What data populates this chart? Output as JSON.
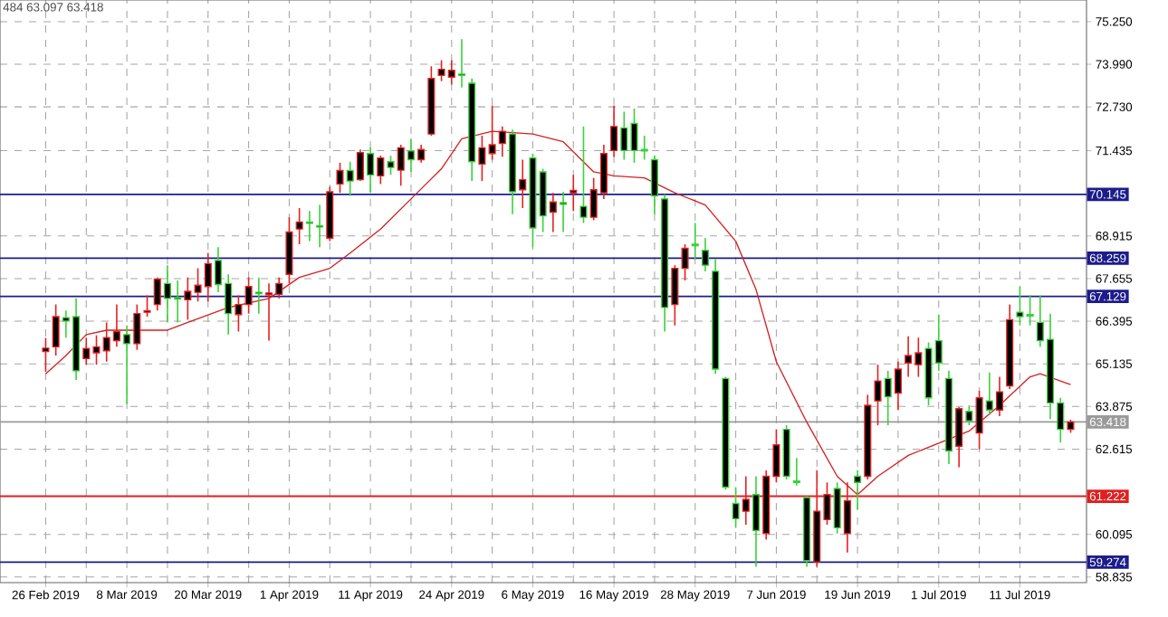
{
  "chart_data": {
    "type": "candlestick",
    "categories": [
      "26 Feb 2019",
      null,
      null,
      null,
      null,
      null,
      null,
      null,
      "8 Mar 2019",
      null,
      null,
      null,
      null,
      null,
      null,
      null,
      "20 Mar 2019",
      null,
      null,
      null,
      null,
      null,
      null,
      null,
      "1 Apr 2019",
      null,
      null,
      null,
      null,
      null,
      null,
      null,
      "11 Apr 2019",
      null,
      null,
      null,
      null,
      null,
      null,
      null,
      "24 Apr 2019",
      null,
      null,
      null,
      null,
      null,
      null,
      null,
      "6 May 2019",
      null,
      null,
      null,
      null,
      null,
      null,
      null,
      "16 May 2019",
      null,
      null,
      null,
      null,
      null,
      null,
      null,
      "28 May 2019",
      null,
      null,
      null,
      null,
      null,
      null,
      null,
      "7 Jun 2019",
      null,
      null,
      null,
      null,
      null,
      null,
      null,
      "19 Jun 2019",
      null,
      null,
      null,
      null,
      null,
      null,
      null,
      "1 Jul 2019",
      null,
      null,
      null,
      null,
      null,
      null,
      null,
      "11 Jul 2019",
      null,
      null,
      null,
      null,
      null
    ],
    "ohlc": [
      [
        65.5,
        65.9,
        64.9,
        65.6
      ],
      [
        65.64,
        66.89,
        65.38,
        66.53
      ],
      [
        66.5,
        66.71,
        65.91,
        66.4
      ],
      [
        66.53,
        67.07,
        64.66,
        64.93
      ],
      [
        65.29,
        65.91,
        65.11,
        65.59
      ],
      [
        65.46,
        65.98,
        65.11,
        65.64
      ],
      [
        65.52,
        66.36,
        65.2,
        65.91
      ],
      [
        65.82,
        66.89,
        65.64,
        66.09
      ],
      [
        66.0,
        66.27,
        63.95,
        65.73
      ],
      [
        65.73,
        66.89,
        65.55,
        66.62
      ],
      [
        66.66,
        67.16,
        66.53,
        66.71
      ],
      [
        66.89,
        67.69,
        66.71,
        67.64
      ],
      [
        67.51,
        68.05,
        66.36,
        67.07
      ],
      [
        67.09,
        67.6,
        66.36,
        67.05
      ],
      [
        67.03,
        67.69,
        66.44,
        67.28
      ],
      [
        67.25,
        67.96,
        66.98,
        67.46
      ],
      [
        67.42,
        68.41,
        66.98,
        68.1
      ],
      [
        68.19,
        68.58,
        67.25,
        67.48
      ],
      [
        67.51,
        67.78,
        66.0,
        66.62
      ],
      [
        66.59,
        67.16,
        66.09,
        66.89
      ],
      [
        66.89,
        67.69,
        66.62,
        67.42
      ],
      [
        67.25,
        67.69,
        66.62,
        67.21
      ],
      [
        67.18,
        67.51,
        65.82,
        67.23
      ],
      [
        67.19,
        67.69,
        67.07,
        67.51
      ],
      [
        67.78,
        69.47,
        67.51,
        69.03
      ],
      [
        69.12,
        69.74,
        68.67,
        69.33
      ],
      [
        69.33,
        69.65,
        68.76,
        69.29
      ],
      [
        69.22,
        69.83,
        68.58,
        69.18
      ],
      [
        68.85,
        70.37,
        68.76,
        70.22
      ],
      [
        70.45,
        71.08,
        70.19,
        70.85
      ],
      [
        70.85,
        71.11,
        70.1,
        70.54
      ],
      [
        70.58,
        71.47,
        70.54,
        71.38
      ],
      [
        71.35,
        71.53,
        70.19,
        70.72
      ],
      [
        70.69,
        71.29,
        70.45,
        71.22
      ],
      [
        71.11,
        71.29,
        70.72,
        70.94
      ],
      [
        70.86,
        71.61,
        70.4,
        71.52
      ],
      [
        71.43,
        71.79,
        70.81,
        71.17
      ],
      [
        71.17,
        71.61,
        71.08,
        71.47
      ],
      [
        71.93,
        73.93,
        71.88,
        73.57
      ],
      [
        73.66,
        74.11,
        73.49,
        73.84
      ],
      [
        73.61,
        74.11,
        73.39,
        73.81
      ],
      [
        73.7,
        74.73,
        73.3,
        73.66
      ],
      [
        73.43,
        73.57,
        70.54,
        71.11
      ],
      [
        71.04,
        71.88,
        70.54,
        71.52
      ],
      [
        71.35,
        72.77,
        71.17,
        71.61
      ],
      [
        71.65,
        72.15,
        71.26,
        72.01
      ],
      [
        71.93,
        72.06,
        69.56,
        70.22
      ],
      [
        70.28,
        71.17,
        69.74,
        70.58
      ],
      [
        71.22,
        71.35,
        68.58,
        69.15
      ],
      [
        70.81,
        70.9,
        69.03,
        69.51
      ],
      [
        69.62,
        70.19,
        69.03,
        69.92
      ],
      [
        69.9,
        70.22,
        69.03,
        69.85
      ],
      [
        70.19,
        70.72,
        69.65,
        70.26
      ],
      [
        69.79,
        72.15,
        69.3,
        69.47
      ],
      [
        69.47,
        70.63,
        69.38,
        70.28
      ],
      [
        70.19,
        71.61,
        70.01,
        71.35
      ],
      [
        71.44,
        72.77,
        71.26,
        72.15
      ],
      [
        72.11,
        72.59,
        71.17,
        71.44
      ],
      [
        72.24,
        72.68,
        71.08,
        71.44
      ],
      [
        71.47,
        71.88,
        71.17,
        71.43
      ],
      [
        71.17,
        71.29,
        69.56,
        70.1
      ],
      [
        70.01,
        70.15,
        66.09,
        66.8
      ],
      [
        66.89,
        68.05,
        66.27,
        67.96
      ],
      [
        67.96,
        68.67,
        67.6,
        68.55
      ],
      [
        68.67,
        69.3,
        68.23,
        68.63
      ],
      [
        68.49,
        68.85,
        67.87,
        68.05
      ],
      [
        67.87,
        68.23,
        64.84,
        64.98
      ],
      [
        64.7,
        64.75,
        61.42,
        61.49
      ],
      [
        61.01,
        61.49,
        60.29,
        60.56
      ],
      [
        60.78,
        61.81,
        60.38,
        61.13
      ],
      [
        61.27,
        61.81,
        59.14,
        60.21
      ],
      [
        60.12,
        61.99,
        59.94,
        61.81
      ],
      [
        61.81,
        63.2,
        61.63,
        62.74
      ],
      [
        63.2,
        63.32,
        61.72,
        61.81
      ],
      [
        61.67,
        62.35,
        61.54,
        61.63
      ],
      [
        61.18,
        61.24,
        59.14,
        59.32
      ],
      [
        59.28,
        61.99,
        59.14,
        60.78
      ],
      [
        60.53,
        61.63,
        60.38,
        61.27
      ],
      [
        61.45,
        61.63,
        60.12,
        60.29
      ],
      [
        60.12,
        61.63,
        59.56,
        61.09
      ],
      [
        61.81,
        61.99,
        60.83,
        61.63
      ],
      [
        61.81,
        64.22,
        61.72,
        63.91
      ],
      [
        64.04,
        65.11,
        63.32,
        64.63
      ],
      [
        64.7,
        64.93,
        63.32,
        64.16
      ],
      [
        64.27,
        65.2,
        63.77,
        64.98
      ],
      [
        65.16,
        65.95,
        64.75,
        65.38
      ],
      [
        65.11,
        65.91,
        64.75,
        65.46
      ],
      [
        65.59,
        65.77,
        63.91,
        64.13
      ],
      [
        65.82,
        66.59,
        64.93,
        65.16
      ],
      [
        64.7,
        64.93,
        62.17,
        62.56
      ],
      [
        62.7,
        63.86,
        62.08,
        63.81
      ],
      [
        63.73,
        63.91,
        63.32,
        63.45
      ],
      [
        63.09,
        64.34,
        62.61,
        64.13
      ],
      [
        64.04,
        64.88,
        63.63,
        63.77
      ],
      [
        63.77,
        64.75,
        63.59,
        64.31
      ],
      [
        64.48,
        66.89,
        64.39,
        66.44
      ],
      [
        66.66,
        67.42,
        66.27,
        66.53
      ],
      [
        66.59,
        67.16,
        66.27,
        66.55
      ],
      [
        66.36,
        67.16,
        65.64,
        65.82
      ],
      [
        65.86,
        66.62,
        63.5,
        63.98
      ],
      [
        63.98,
        64.13,
        62.81,
        63.2
      ],
      [
        63.2,
        63.484,
        63.097,
        63.418
      ]
    ],
    "series": [
      {
        "type": "line",
        "color": "#d42020",
        "values": [
          64.84,
          null,
          65.38,
          null,
          66.0,
          null,
          66.13,
          null,
          null,
          null,
          null,
          null,
          66.13,
          null,
          66.36,
          null,
          null,
          null,
          66.8,
          null,
          null,
          null,
          67.07,
          null,
          null,
          67.69,
          null,
          null,
          67.96,
          null,
          68.41,
          null,
          null,
          69.12,
          null,
          null,
          70.01,
          null,
          null,
          70.9,
          null,
          71.79,
          null,
          null,
          72.01,
          null,
          null,
          null,
          71.93,
          null,
          null,
          71.7,
          null,
          null,
          70.81,
          null,
          70.69,
          null,
          null,
          70.63,
          null,
          null,
          70.19,
          null,
          null,
          69.83,
          null,
          null,
          68.76,
          null,
          67.33,
          null,
          65.2,
          null,
          null,
          63.41,
          null,
          null,
          61.81,
          null,
          61.27,
          null,
          61.81,
          null,
          null,
          62.43,
          null,
          null,
          62.79,
          null,
          null,
          63.15,
          null,
          null,
          63.91,
          null,
          null,
          64.75,
          64.84,
          null,
          null,
          64.52
        ]
      }
    ],
    "ylim": [
      58.67,
      75.89
    ],
    "yticks": [
      {
        "value": 75.25,
        "label": "75.250"
      },
      {
        "value": 73.99,
        "label": "73.990"
      },
      {
        "value": 72.73,
        "label": "72.730"
      },
      {
        "value": 71.435,
        "label": "71.435"
      },
      {
        "value": 68.915,
        "label": "68.915"
      },
      {
        "value": 67.655,
        "label": "67.655"
      },
      {
        "value": 66.395,
        "label": "66.395"
      },
      {
        "value": 65.135,
        "label": "65.135"
      },
      {
        "value": 63.875,
        "label": "63.875"
      },
      {
        "value": 62.615,
        "label": "62.615"
      },
      {
        "value": 60.095,
        "label": "60.095"
      },
      {
        "value": 58.835,
        "label": "58.835"
      }
    ],
    "ref_lines": [
      {
        "axis": "y",
        "value": 70.145,
        "label": "70.145",
        "color": "#1c1c8c"
      },
      {
        "axis": "y",
        "value": 68.259,
        "label": "68.259",
        "color": "#1c1c8c"
      },
      {
        "axis": "y",
        "value": 67.129,
        "label": "67.129",
        "color": "#1c1c8c"
      },
      {
        "axis": "y",
        "value": 63.418,
        "label": "63.418",
        "color": "#9a9a9a"
      },
      {
        "axis": "y",
        "value": 61.222,
        "label": "61.222",
        "color": "#e02020"
      },
      {
        "axis": "y",
        "value": 59.274,
        "label": "59.274",
        "color": "#1c1c8c"
      }
    ],
    "annotations": [
      "484 63.097 63.418"
    ],
    "grid": true
  }
}
